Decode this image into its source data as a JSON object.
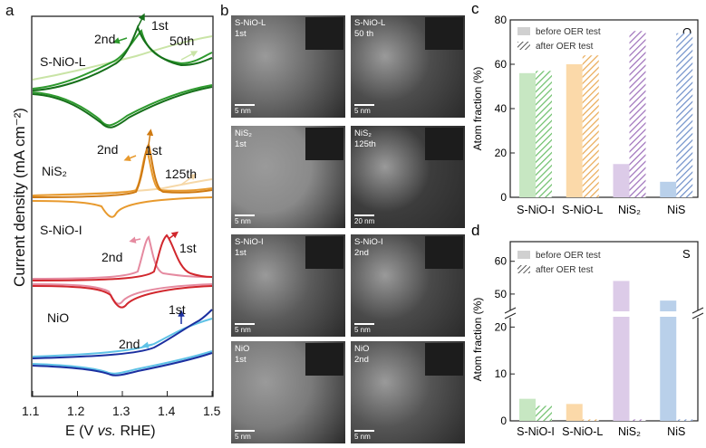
{
  "panel_a": {
    "label": "a",
    "ylabel": "Current density (mA cm⁻²)",
    "xlabel_parts": [
      "E (V ",
      "vs.",
      " RHE)"
    ],
    "x_ticks": [
      "1.1",
      "1.2",
      "1.3",
      "1.4",
      "1.5"
    ],
    "curves": [
      {
        "name": "S-NiO-L",
        "cycles": [
          "2nd",
          "1st",
          "50th"
        ],
        "colors": [
          "#2e9a2e",
          "#16701a",
          "#c9e4a6"
        ]
      },
      {
        "name": "NiS₂",
        "cycles": [
          "2nd",
          "1st",
          "125th"
        ],
        "colors": [
          "#e89a2e",
          "#cf7a12",
          "#f6d8a8"
        ]
      },
      {
        "name": "S-NiO-I",
        "cycles": [
          "2nd",
          "1st"
        ],
        "colors": [
          "#e58aa0",
          "#d1272d"
        ]
      },
      {
        "name": "NiO",
        "cycles": [
          "2nd",
          "1st"
        ],
        "colors": [
          "#5fc2e6",
          "#1b2fa0"
        ]
      }
    ]
  },
  "panel_b": {
    "label": "b",
    "tiles": [
      {
        "caption": "S-NiO-L\n1st",
        "scale": "5 nm"
      },
      {
        "caption": "S-NiO-L\n50 th",
        "scale": "5 nm"
      },
      {
        "caption": "NiS₂\n1st",
        "scale": "5 nm"
      },
      {
        "caption": "NiS₂\n125th",
        "scale": "20 nm"
      },
      {
        "caption": "S-NiO-I\n1st",
        "scale": "5 nm"
      },
      {
        "caption": "S-NiO-I\n2nd",
        "scale": "5 nm"
      },
      {
        "caption": "NiO\n1st",
        "scale": "5 nm"
      },
      {
        "caption": "NiO\n2nd",
        "scale": "5 nm"
      }
    ]
  },
  "chart_data": [
    {
      "type": "bar",
      "panel": "c",
      "element": "O",
      "ylabel": "Atom fraction (%)",
      "categories": [
        "S-NiO-I",
        "S-NiO-L",
        "NiS₂",
        "NiS"
      ],
      "ylim": [
        0,
        80
      ],
      "yticks": [
        0,
        20,
        40,
        60,
        80
      ],
      "series": [
        {
          "name": "before OER test",
          "values": [
            56,
            60,
            15,
            7
          ]
        },
        {
          "name": "after OER test",
          "values": [
            57,
            64,
            75,
            74
          ]
        }
      ],
      "colors": [
        "#c7e7c2",
        "#fbd9a9",
        "#dccbe8",
        "#b9d0ea"
      ],
      "hatch_colors": [
        "#6cbf6a",
        "#e9a953",
        "#9d6fba",
        "#6e8fc9"
      ]
    },
    {
      "type": "bar",
      "panel": "d",
      "element": "S",
      "ylabel": "Atom fraction (%)",
      "categories": [
        "S-NiO-I",
        "S-NiO-L",
        "NiS₂",
        "NiS"
      ],
      "broken_axis": true,
      "yticks": [
        0,
        10,
        20,
        50,
        60
      ],
      "series": [
        {
          "name": "before OER test",
          "values": [
            4.7,
            3.6,
            54,
            48
          ]
        },
        {
          "name": "after OER test",
          "values": [
            3.2,
            0.3,
            0.3,
            0.3
          ]
        }
      ],
      "colors": [
        "#c7e7c2",
        "#fbd9a9",
        "#dccbe8",
        "#b9d0ea"
      ],
      "hatch_colors": [
        "#6cbf6a",
        "#e9a953",
        "#9d6fba",
        "#6e8fc9"
      ]
    }
  ]
}
